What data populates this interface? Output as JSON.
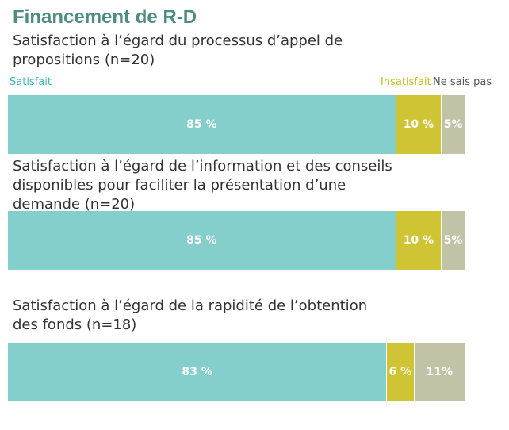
{
  "title": "Financement de R-D",
  "legend": [
    {
      "label": "Satisfait",
      "color": "#84cfcb"
    },
    {
      "label": "Insatisfait",
      "color": "#cfc534"
    },
    {
      "label": "Ne sais pas",
      "color": "#c2c3a6"
    }
  ],
  "chart_data": {
    "type": "bar",
    "orientation": "horizontal",
    "stacked": true,
    "series_names": [
      "Satisfait",
      "Insatisfait",
      "Ne sais pas"
    ],
    "series_colors": [
      "#84cfcb",
      "#cfc534",
      "#c2c3a6"
    ],
    "xlim": [
      0,
      100
    ],
    "rows": [
      {
        "label": "Satisfaction à l’égard du processus d’appel de propositions (n=20)",
        "values": [
          85,
          10,
          5
        ],
        "value_labels": [
          "85 %",
          "10 %",
          "5%"
        ]
      },
      {
        "label": "Satisfaction à l’égard de l’information et des conseils disponibles pour faciliter la présentation d’une demande (n=20)",
        "values": [
          85,
          10,
          5
        ],
        "value_labels": [
          "85 %",
          "10 %",
          "5%"
        ]
      },
      {
        "label": "Satisfaction à l’égard de la rapidité de l’obtention des fonds (n=18)",
        "values": [
          83,
          6,
          11
        ],
        "value_labels": [
          "83 %",
          "6 %",
          "11%"
        ]
      }
    ]
  }
}
